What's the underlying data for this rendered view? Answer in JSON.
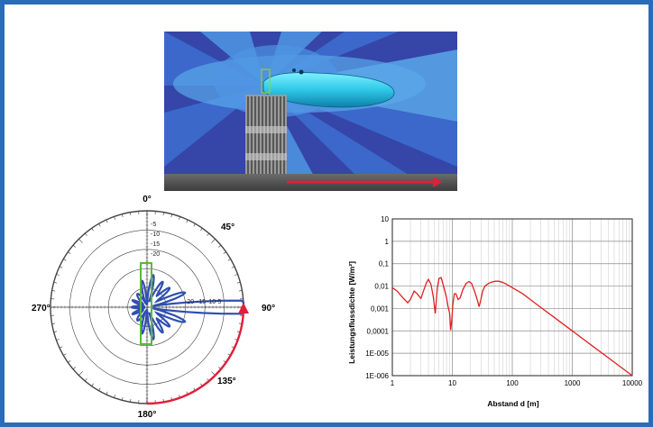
{
  "polar": {
    "angle_labels": [
      "0°",
      "45°",
      "90°",
      "135°",
      "180°",
      "270°"
    ],
    "ring_labels_upper": [
      "-5",
      "-10",
      "-15",
      "-20"
    ],
    "ring_labels_right": [
      "-20",
      "-15",
      "-10",
      "-5"
    ]
  },
  "chart_data": {
    "type": "line",
    "title": "",
    "xlabel": "Abstand d  [m]",
    "ylabel": "Leistungsflussdichte  [W/m²]",
    "xscale": "log",
    "yscale": "log",
    "xlim": [
      1,
      10000
    ],
    "ylim": [
      1e-06,
      10
    ],
    "x_ticks": [
      "1",
      "10",
      "100",
      "1000",
      "10000"
    ],
    "y_ticks": [
      "10",
      "1",
      "0,1",
      "0,01",
      "0,001",
      "0,0001",
      "1E-005",
      "1E-006"
    ],
    "grid": true,
    "series": [
      {
        "color": "#e02020",
        "x": [
          1,
          1.2,
          1.5,
          1.8,
          2.0,
          2.3,
          2.6,
          3.0,
          3.3,
          3.7,
          4.0,
          4.4,
          4.8,
          5.2,
          5.6,
          6.0,
          6.5,
          7.0,
          7.5,
          8.0,
          8.5,
          9.0,
          9.4,
          9.8,
          10.2,
          10.8,
          11.5,
          12.5,
          13.5,
          15,
          17,
          19,
          21,
          24,
          26,
          28,
          30,
          32,
          35,
          40,
          45,
          52,
          60,
          70,
          80,
          100,
          150,
          200,
          300,
          500,
          1000,
          2000,
          5000,
          10000
        ],
        "y": [
          0.0085,
          0.006,
          0.003,
          0.0018,
          0.0025,
          0.006,
          0.0045,
          0.0028,
          0.006,
          0.014,
          0.02,
          0.012,
          0.0035,
          0.0006,
          0.008,
          0.022,
          0.024,
          0.012,
          0.006,
          0.003,
          0.0012,
          0.0006,
          0.00011,
          0.0003,
          0.0015,
          0.0045,
          0.0045,
          0.0025,
          0.003,
          0.007,
          0.013,
          0.016,
          0.013,
          0.005,
          0.0025,
          0.0012,
          0.0025,
          0.006,
          0.01,
          0.013,
          0.015,
          0.0165,
          0.0165,
          0.0145,
          0.012,
          0.0085,
          0.0045,
          0.0025,
          0.0011,
          0.0004,
          0.0001,
          2.5e-05,
          4e-06,
          1e-06
        ]
      }
    ]
  }
}
